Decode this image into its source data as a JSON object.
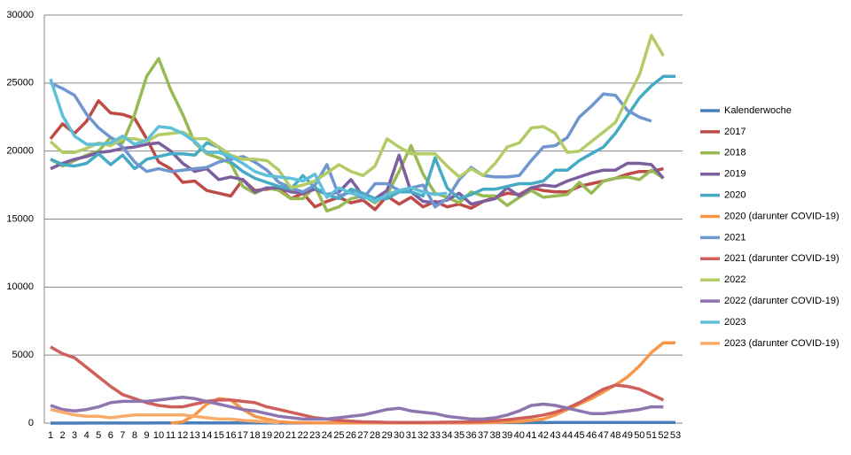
{
  "chart_data": {
    "type": "line",
    "categories": [
      1,
      2,
      3,
      4,
      5,
      6,
      7,
      8,
      9,
      10,
      11,
      12,
      13,
      14,
      15,
      16,
      17,
      18,
      19,
      20,
      21,
      22,
      23,
      24,
      25,
      26,
      27,
      28,
      29,
      30,
      31,
      32,
      33,
      34,
      35,
      36,
      37,
      38,
      39,
      40,
      41,
      42,
      43,
      44,
      45,
      46,
      47,
      48,
      49,
      50,
      51,
      52,
      53
    ],
    "ylim": [
      0,
      30000
    ],
    "yticks": [
      0,
      5000,
      10000,
      15000,
      20000,
      25000,
      30000
    ],
    "grid": true,
    "legend": "right",
    "series": [
      {
        "name": "Kalenderwoche",
        "color": "#4a7ebb",
        "values": [
          1,
          2,
          3,
          4,
          5,
          6,
          7,
          8,
          9,
          10,
          11,
          12,
          13,
          14,
          15,
          16,
          17,
          18,
          19,
          20,
          21,
          22,
          23,
          24,
          25,
          26,
          27,
          28,
          29,
          30,
          31,
          32,
          33,
          34,
          35,
          36,
          37,
          38,
          39,
          40,
          41,
          42,
          43,
          44,
          45,
          46,
          47,
          48,
          49,
          50,
          51,
          52,
          53
        ]
      },
      {
        "name": "2017",
        "color": "#be4b48",
        "values": [
          20900,
          22000,
          21300,
          22200,
          23700,
          22800,
          22700,
          22400,
          20900,
          19200,
          18700,
          17700,
          17800,
          17100,
          16900,
          16700,
          17900,
          17100,
          17200,
          17300,
          16500,
          16900,
          15900,
          16300,
          16600,
          16200,
          16400,
          15700,
          16700,
          16100,
          16600,
          15900,
          16300,
          15900,
          16100,
          15800,
          16300,
          16600,
          16900,
          16800,
          17300,
          17100,
          17000,
          17000,
          17400,
          17600,
          17800,
          18000,
          18300,
          18500,
          18500,
          18700,
          null
        ]
      },
      {
        "name": "2018",
        "color": "#98b954",
        "values": [
          19400,
          18900,
          19300,
          19700,
          20000,
          21000,
          20600,
          22700,
          25500,
          26800,
          24500,
          22700,
          20600,
          19800,
          19500,
          19100,
          17400,
          16900,
          17300,
          17100,
          16500,
          16500,
          17400,
          15600,
          15900,
          16500,
          16700,
          16200,
          16800,
          18500,
          20400,
          18300,
          16900,
          16600,
          16200,
          17000,
          16700,
          16700,
          16000,
          16600,
          17100,
          16600,
          16700,
          16800,
          17700,
          16900,
          17800,
          18000,
          18100,
          17900,
          18600,
          18000,
          null
        ]
      },
      {
        "name": "2019",
        "color": "#7d5fa0",
        "values": [
          18700,
          19100,
          19400,
          19600,
          19900,
          20000,
          20200,
          20300,
          20500,
          20600,
          20000,
          19100,
          18500,
          18700,
          17900,
          18100,
          17900,
          17000,
          17300,
          17300,
          17000,
          16900,
          17200,
          16800,
          17000,
          17900,
          16700,
          16500,
          17100,
          19700,
          17000,
          16300,
          16200,
          16400,
          16900,
          16100,
          16300,
          16500,
          17300,
          16700,
          17300,
          17500,
          17400,
          17800,
          18100,
          18400,
          18600,
          18600,
          19100,
          19100,
          19000,
          18000,
          null
        ]
      },
      {
        "name": "2020",
        "color": "#46aac5",
        "values": [
          19400,
          19000,
          18900,
          19100,
          19800,
          19000,
          19700,
          18700,
          19400,
          19600,
          19800,
          19800,
          19700,
          20600,
          20300,
          19200,
          18500,
          18000,
          17700,
          17400,
          17200,
          18200,
          17300,
          16800,
          16500,
          17200,
          16900,
          16500,
          16500,
          17000,
          17000,
          16700,
          19500,
          17300,
          16500,
          16800,
          17200,
          17200,
          17400,
          17600,
          17600,
          17800,
          18600,
          18600,
          19300,
          19800,
          20300,
          21300,
          22600,
          23900,
          24800,
          25500,
          25500
        ]
      },
      {
        "name": "2020 (darunter COVID-19)",
        "color": "#f79646",
        "values": [
          null,
          null,
          null,
          null,
          null,
          null,
          null,
          null,
          null,
          null,
          0,
          100,
          600,
          1400,
          1800,
          1700,
          1000,
          500,
          300,
          100,
          50,
          30,
          20,
          10,
          10,
          10,
          10,
          10,
          10,
          10,
          10,
          10,
          10,
          10,
          10,
          20,
          30,
          50,
          80,
          120,
          200,
          300,
          600,
          1000,
          1400,
          1800,
          2300,
          2800,
          3400,
          4200,
          5200,
          5900,
          5900
        ]
      },
      {
        "name": "2021",
        "color": "#7096d0",
        "values": [
          25000,
          24600,
          24100,
          22700,
          21700,
          21000,
          20300,
          19200,
          18500,
          18700,
          18500,
          18600,
          18700,
          18800,
          19200,
          19400,
          19600,
          19200,
          18600,
          17700,
          17300,
          17000,
          17500,
          19000,
          16700,
          17000,
          16500,
          17600,
          17600,
          17100,
          17300,
          17500,
          15900,
          16500,
          17900,
          18800,
          18200,
          18100,
          18100,
          18200,
          19300,
          20300,
          20400,
          21000,
          22500,
          23300,
          24200,
          24100,
          23000,
          22500,
          22200,
          null,
          null
        ]
      },
      {
        "name": "2021 (darunter COVID-19)",
        "color": "#cf5f5b",
        "values": [
          5600,
          5100,
          4800,
          4100,
          3400,
          2700,
          2100,
          1800,
          1500,
          1300,
          1200,
          1200,
          1400,
          1600,
          1700,
          1700,
          1600,
          1500,
          1200,
          1000,
          800,
          600,
          400,
          300,
          200,
          150,
          100,
          80,
          60,
          50,
          50,
          50,
          60,
          70,
          80,
          100,
          130,
          180,
          250,
          350,
          450,
          600,
          800,
          1100,
          1500,
          2000,
          2500,
          2800,
          2700,
          2500,
          2100,
          1700,
          null
        ]
      },
      {
        "name": "2022",
        "color": "#b3cc65",
        "values": [
          20700,
          19900,
          19900,
          20200,
          20600,
          20400,
          20900,
          20900,
          20700,
          21200,
          21300,
          21400,
          20900,
          20900,
          20300,
          19700,
          19400,
          19400,
          19300,
          18600,
          17300,
          17500,
          17800,
          18400,
          19000,
          18500,
          18200,
          18900,
          20900,
          20300,
          19800,
          19800,
          19800,
          18900,
          18100,
          18700,
          18200,
          19100,
          20300,
          20600,
          21700,
          21800,
          21300,
          19900,
          20000,
          20700,
          21400,
          22100,
          23900,
          25600,
          28500,
          27000,
          null
        ]
      },
      {
        "name": "2022 (darunter COVID-19)",
        "color": "#8e75b0",
        "values": [
          1300,
          1000,
          900,
          1000,
          1200,
          1500,
          1600,
          1600,
          1600,
          1700,
          1800,
          1900,
          1800,
          1600,
          1400,
          1200,
          1000,
          900,
          700,
          500,
          400,
          300,
          300,
          300,
          400,
          500,
          600,
          800,
          1000,
          1100,
          900,
          800,
          700,
          500,
          400,
          300,
          300,
          400,
          600,
          900,
          1300,
          1400,
          1300,
          1100,
          900,
          700,
          700,
          800,
          900,
          1000,
          1200,
          1200,
          null
        ]
      },
      {
        "name": "2023",
        "color": "#5fc0d9",
        "values": [
          25300,
          22600,
          21100,
          20500,
          20500,
          20600,
          21100,
          20500,
          20800,
          21800,
          21700,
          21300,
          20700,
          19900,
          19900,
          19600,
          19100,
          18500,
          18200,
          18100,
          18000,
          17800,
          18300,
          16600,
          17300,
          16900,
          16700,
          16300,
          16800,
          17100,
          17300,
          17000,
          16800,
          16900,
          null,
          null,
          null,
          null,
          null,
          null,
          null,
          null,
          null,
          null,
          null,
          null,
          null,
          null,
          null,
          null,
          null,
          null,
          null
        ]
      },
      {
        "name": "2023 (darunter COVID-19)",
        "color": "#f9ac6a",
        "values": [
          1000,
          800,
          600,
          500,
          500,
          400,
          500,
          600,
          600,
          600,
          600,
          600,
          500,
          400,
          300,
          300,
          200,
          150,
          100,
          50,
          null,
          null,
          null,
          null,
          null,
          null,
          null,
          null,
          null,
          null,
          null,
          null,
          null,
          null,
          null,
          null,
          null,
          null,
          null,
          null,
          null,
          null,
          null,
          null,
          null,
          null,
          null,
          null,
          null,
          null,
          null,
          null,
          null
        ]
      }
    ]
  }
}
